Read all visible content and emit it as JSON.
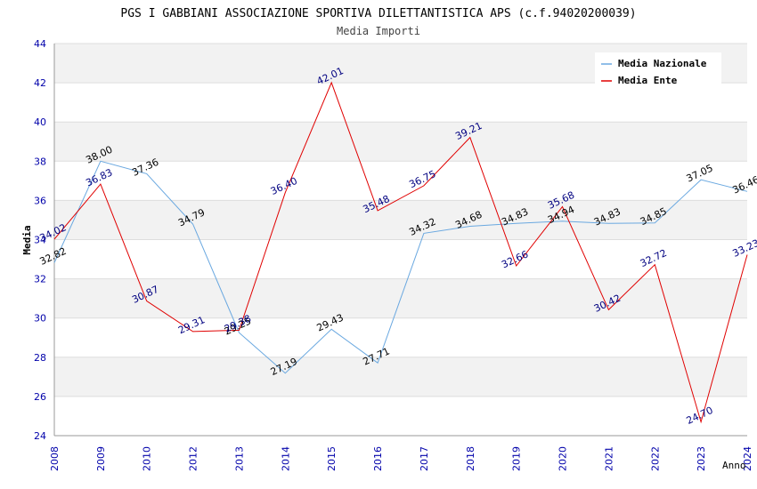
{
  "chart_data": {
    "type": "line",
    "title": "PGS I GABBIANI ASSOCIAZIONE SPORTIVA DILETTANTISTICA APS (c.f.94020200039)",
    "subtitle": "Media Importi",
    "xlabel": "Anno",
    "ylabel": "Media",
    "ylim": [
      24,
      44
    ],
    "yticks": [
      "24",
      "26",
      "28",
      "30",
      "32",
      "34",
      "36",
      "38",
      "40",
      "42",
      "44"
    ],
    "categories": [
      "2008",
      "2009",
      "2010",
      "2012",
      "2013",
      "2014",
      "2015",
      "2016",
      "2017",
      "2018",
      "2019",
      "2020",
      "2021",
      "2022",
      "2023",
      "2024"
    ],
    "legend_position": "top-right",
    "grid": true,
    "series": [
      {
        "name": "Media Nazionale",
        "color": "#6aa8e0",
        "label_color": "#000000",
        "values": [
          32.82,
          38.0,
          37.36,
          34.79,
          29.25,
          27.19,
          29.43,
          27.71,
          34.32,
          34.68,
          34.83,
          34.94,
          34.83,
          34.85,
          37.05,
          36.46
        ],
        "labels": [
          "32.82",
          "38.00",
          "37.36",
          "34.79",
          "29.25",
          "27.19",
          "29.43",
          "27.71",
          "34.32",
          "34.68",
          "34.83",
          "34.94",
          "34.83",
          "34.85",
          "37.05",
          "36.46"
        ]
      },
      {
        "name": "Media Ente",
        "color": "#e00000",
        "label_color": "#000080",
        "values": [
          34.02,
          36.83,
          30.87,
          29.31,
          29.38,
          36.4,
          42.01,
          35.48,
          36.75,
          39.21,
          32.66,
          35.68,
          30.42,
          32.72,
          24.7,
          33.23
        ],
        "labels": [
          "34.02",
          "36.83",
          "30.87",
          "29.31",
          "29.38",
          "36.40",
          "42.01",
          "35.48",
          "36.75",
          "39.21",
          "32.66",
          "35.68",
          "30.42",
          "32.72",
          "24.70",
          "33.23"
        ]
      }
    ]
  }
}
